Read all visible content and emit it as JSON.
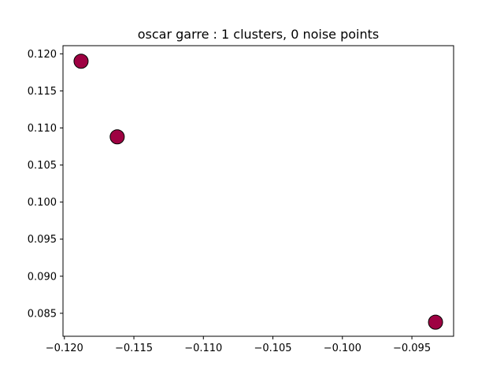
{
  "chart_data": {
    "type": "scatter",
    "title": "oscar garre : 1 clusters, 0 noise points",
    "xlabel": "",
    "ylabel": "",
    "xlim": [
      -0.1201,
      -0.092
    ],
    "ylim": [
      0.0819,
      0.1211
    ],
    "xticks": [
      -0.12,
      -0.115,
      -0.11,
      -0.105,
      -0.1,
      -0.095
    ],
    "xtick_labels": [
      "−0.120",
      "−0.115",
      "−0.110",
      "−0.105",
      "−0.100",
      "−0.095"
    ],
    "yticks": [
      0.085,
      0.09,
      0.095,
      0.1,
      0.105,
      0.11,
      0.115,
      0.12
    ],
    "ytick_labels": [
      "0.085",
      "0.090",
      "0.095",
      "0.100",
      "0.105",
      "0.110",
      "0.115",
      "0.120"
    ],
    "grid": false,
    "legend": "none",
    "series": [
      {
        "color": "#9e0142",
        "edge_color": "#000000",
        "points": [
          {
            "x": -0.1188,
            "y": 0.119
          },
          {
            "x": -0.1162,
            "y": 0.1088
          },
          {
            "x": -0.0933,
            "y": 0.0838
          }
        ]
      }
    ]
  }
}
